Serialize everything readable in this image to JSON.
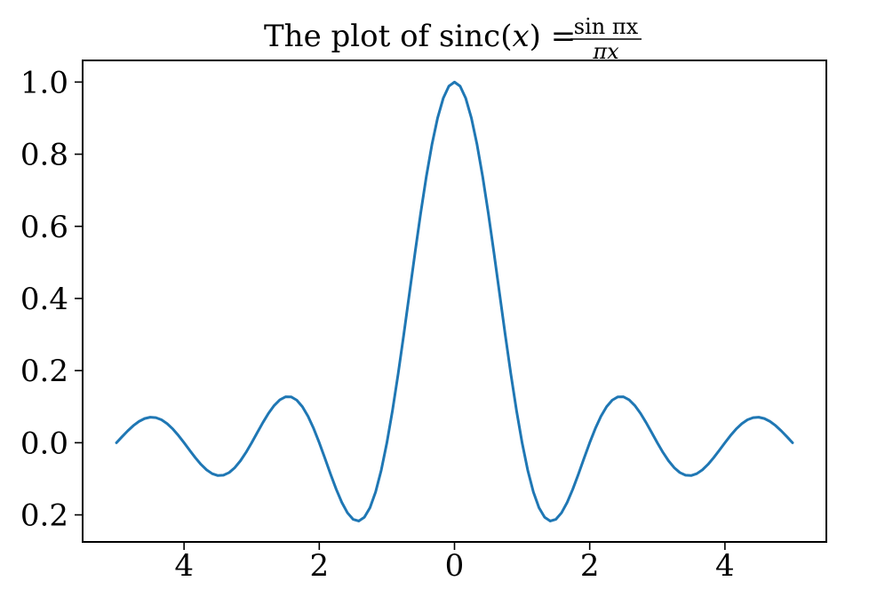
{
  "chart_data": {
    "type": "line",
    "title": {
      "prefix": "The plot of sinc(",
      "var": "x",
      "suffix": ") =",
      "numerator": "sin πx",
      "denominator": "πx"
    },
    "xlabel": "",
    "ylabel": "",
    "function": "sin(πx)/(πx)",
    "xlim": [
      -5.5,
      5.5
    ],
    "ylim": [
      -0.275,
      1.06
    ],
    "x_ticks": [
      -4,
      -2,
      0,
      2,
      4
    ],
    "x_tick_labels": [
      "4",
      "2",
      "0",
      "2",
      "4"
    ],
    "y_ticks": [
      -0.2,
      0.0,
      0.2,
      0.4,
      0.6,
      0.8,
      1.0
    ],
    "y_tick_labels": [
      "0.2",
      "0.0",
      "0.2",
      "0.4",
      "0.6",
      "0.8",
      "1.0"
    ],
    "grid": false,
    "series": [
      {
        "color": "#1f77b4",
        "x": [
          -5,
          -4.5,
          -4,
          -3.5,
          -3,
          -2.5,
          -2,
          -1.5,
          -1,
          -0.5,
          0,
          0.5,
          1,
          1.5,
          2,
          2.5,
          3,
          3.5,
          4,
          4.5,
          5
        ],
        "y": [
          0,
          0.0707,
          0,
          -0.0909,
          0,
          0.1273,
          0,
          -0.2122,
          0,
          0.6366,
          1.0,
          0.6366,
          0,
          -0.2122,
          0,
          0.1273,
          0,
          -0.0909,
          0,
          0.0707,
          0
        ]
      }
    ]
  }
}
